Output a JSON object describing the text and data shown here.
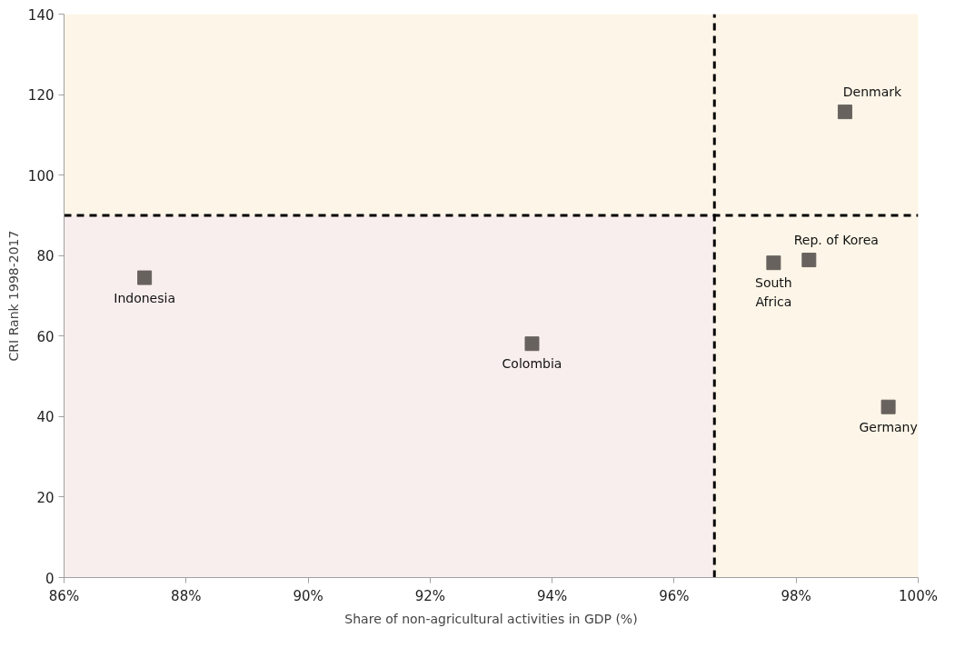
{
  "chart_data": {
    "type": "scatter",
    "xlabel": "Share of non-agricultural activities in GDP (%)",
    "ylabel": "CRI Rank 1998-2017",
    "x": [
      87.32,
      93.67,
      97.63,
      98.21,
      98.8,
      99.51
    ],
    "series": [
      {
        "color": "#68625f",
        "values": [
          74.5,
          58.1,
          78.2,
          78.9,
          115.7,
          42.4
        ]
      }
    ],
    "marker": "square",
    "grid": false,
    "xlim": [
      86,
      100
    ],
    "ylim": [
      0,
      140
    ],
    "xticks": [
      {
        "value": 86,
        "label": "86%"
      },
      {
        "value": 88,
        "label": "88%"
      },
      {
        "value": 90,
        "label": "90%"
      },
      {
        "value": 92,
        "label": "92%"
      },
      {
        "value": 94,
        "label": "94%"
      },
      {
        "value": 96,
        "label": "96%"
      },
      {
        "value": 98,
        "label": "98%"
      },
      {
        "value": 100,
        "label": "100%"
      }
    ],
    "yticks": [
      0,
      20,
      40,
      60,
      80,
      100,
      120,
      140
    ],
    "ref_lines": [
      {
        "axis": "x",
        "value": 96.66,
        "color": "#000000",
        "line_style": "dashed"
      },
      {
        "axis": "y",
        "value": 90,
        "color": "#000000",
        "line_style": "dashed"
      }
    ],
    "bands": [
      {
        "axis": "y",
        "from": 0,
        "to": 90,
        "color": "#f8eeed"
      },
      {
        "axis": "y",
        "from": 90,
        "to": 140,
        "color": "#fdf6e8"
      },
      {
        "axis": "x",
        "from": 96.66,
        "to": 100,
        "color": "#fdf6e8"
      }
    ],
    "annotations": [
      {
        "text": "Indonesia",
        "x": 87.32,
        "y": 74.5
      },
      {
        "text": "Colombia",
        "x": 93.67,
        "y": 58.1
      },
      {
        "text": "South\nAfrica",
        "x": 97.63,
        "y": 78.2
      },
      {
        "text": "Rep. of Korea",
        "x": 98.21,
        "y": 78.9
      },
      {
        "text": "Denmark",
        "x": 98.8,
        "y": 115.7
      },
      {
        "text": "Germany",
        "x": 99.51,
        "y": 42.4
      }
    ]
  }
}
